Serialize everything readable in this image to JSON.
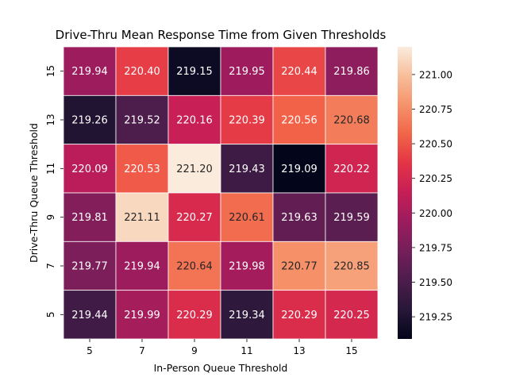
{
  "chart_data": {
    "type": "heatmap",
    "title": "Drive-Thru Mean Response Time from Given Thresholds",
    "xlabel": "In-Person Queue Threshold",
    "ylabel": "Drive-Thru Queue Threshold",
    "x_categories": [
      "5",
      "7",
      "9",
      "11",
      "13",
      "15"
    ],
    "y_categories": [
      "15",
      "13",
      "11",
      "9",
      "7",
      "5"
    ],
    "values": [
      [
        219.94,
        220.4,
        219.15,
        219.95,
        220.44,
        219.86
      ],
      [
        219.26,
        219.52,
        220.16,
        220.39,
        220.56,
        220.68
      ],
      [
        220.09,
        220.53,
        221.2,
        219.43,
        219.09,
        220.22
      ],
      [
        219.81,
        221.11,
        220.27,
        220.61,
        219.63,
        219.59
      ],
      [
        219.77,
        219.94,
        220.64,
        219.98,
        220.77,
        220.85
      ],
      [
        219.44,
        219.99,
        220.29,
        219.34,
        220.29,
        220.25
      ]
    ],
    "value_labels": [
      [
        "219.94",
        "220.40",
        "219.15",
        "219.95",
        "220.44",
        "219.86"
      ],
      [
        "219.26",
        "219.52",
        "220.16",
        "220.39",
        "220.56",
        "220.68"
      ],
      [
        "220.09",
        "220.53",
        "221.20",
        "219.43",
        "219.09",
        "220.22"
      ],
      [
        "219.81",
        "221.11",
        "220.27",
        "220.61",
        "219.63",
        "219.59"
      ],
      [
        "219.77",
        "219.94",
        "220.64",
        "219.98",
        "220.77",
        "220.85"
      ],
      [
        "219.44",
        "219.99",
        "220.29",
        "219.34",
        "220.29",
        "220.25"
      ]
    ],
    "colorscale": "rocket",
    "vmin": 219.09,
    "vmax": 221.2,
    "colorbar_ticks": [
      "221.00",
      "220.75",
      "220.50",
      "220.25",
      "220.00",
      "219.75",
      "219.50",
      "219.25"
    ],
    "colorbar_tick_values": [
      221.0,
      220.75,
      220.5,
      220.25,
      220.0,
      219.75,
      219.5,
      219.25
    ]
  }
}
